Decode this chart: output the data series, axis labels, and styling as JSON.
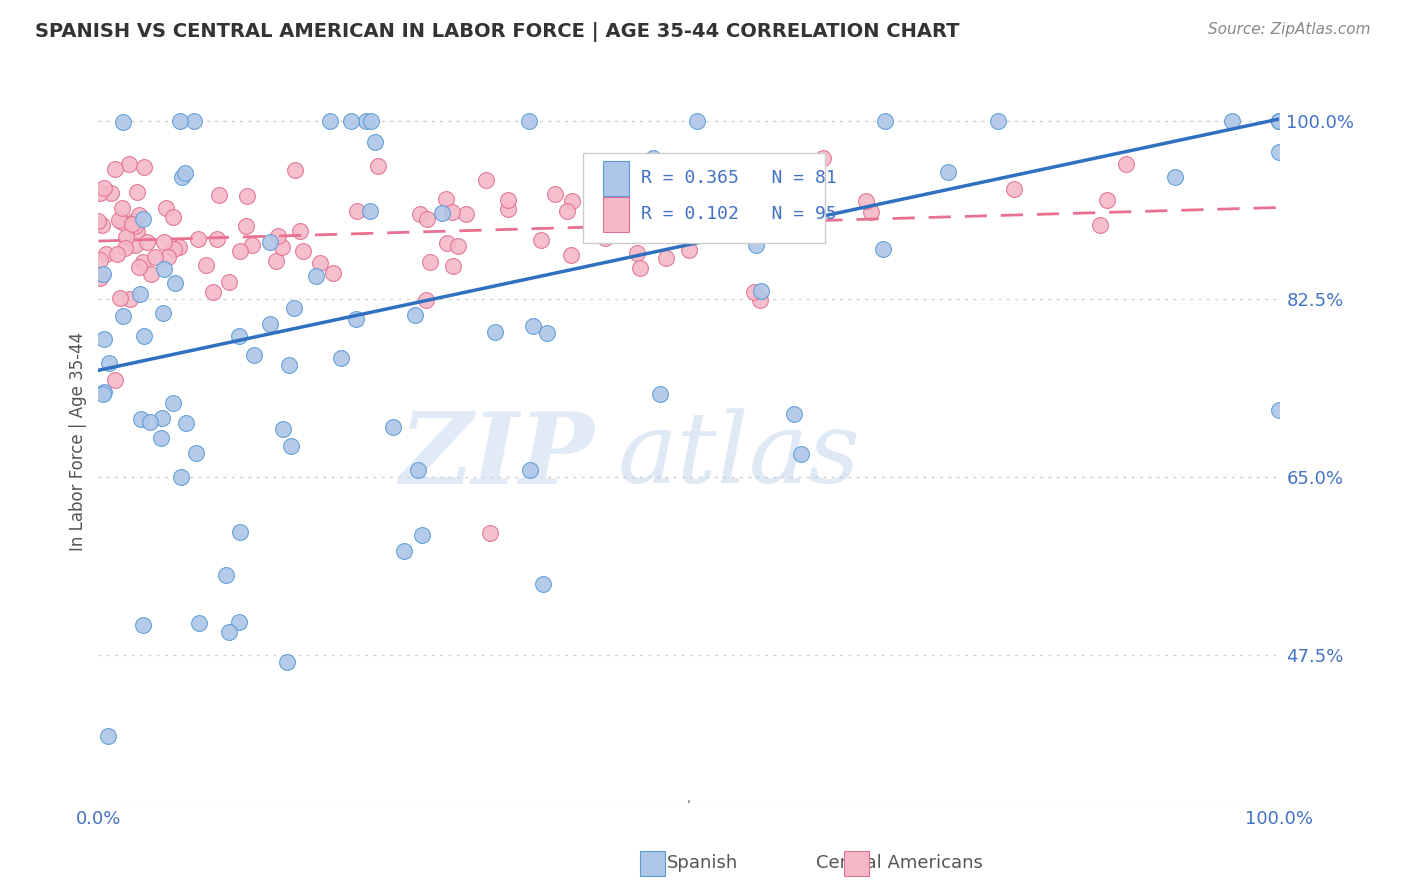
{
  "title": "SPANISH VS CENTRAL AMERICAN IN LABOR FORCE | AGE 35-44 CORRELATION CHART",
  "source_text": "Source: ZipAtlas.com",
  "ylabel": "In Labor Force | Age 35-44",
  "xlim": [
    0.0,
    1.0
  ],
  "ylim": [
    0.33,
    1.04
  ],
  "yticks": [
    0.475,
    0.65,
    0.825,
    1.0
  ],
  "ytick_labels": [
    "47.5%",
    "65.0%",
    "82.5%",
    "100.0%"
  ],
  "legend_r1": "R = 0.365",
  "legend_n1": "N = 81",
  "legend_r2": "R = 0.102",
  "legend_n2": "N = 95",
  "watermark_zip": "ZIP",
  "watermark_atlas": "atlas",
  "title_color": "#333333",
  "axis_label_color": "#4472c4",
  "scatter_blue_color": "#aec6e8",
  "scatter_blue_edge": "#5b9bd5",
  "scatter_pink_color": "#f4b8c8",
  "scatter_pink_edge": "#e07090",
  "line_blue_color": "#3070c0",
  "line_pink_color": "#e87090",
  "grid_color": "#d0d0d0",
  "background_color": "#ffffff",
  "legend_blue_fill": "#aec6e8",
  "legend_pink_fill": "#f4b8c8",
  "legend_text_color": "#4472c4",
  "source_color": "#888888",
  "ylabel_color": "#555555",
  "bottom_label_color": "#555555",
  "blue_trend_start_y": 0.755,
  "blue_trend_end_y": 1.002,
  "pink_trend_start_y": 0.882,
  "pink_trend_end_y": 0.915
}
